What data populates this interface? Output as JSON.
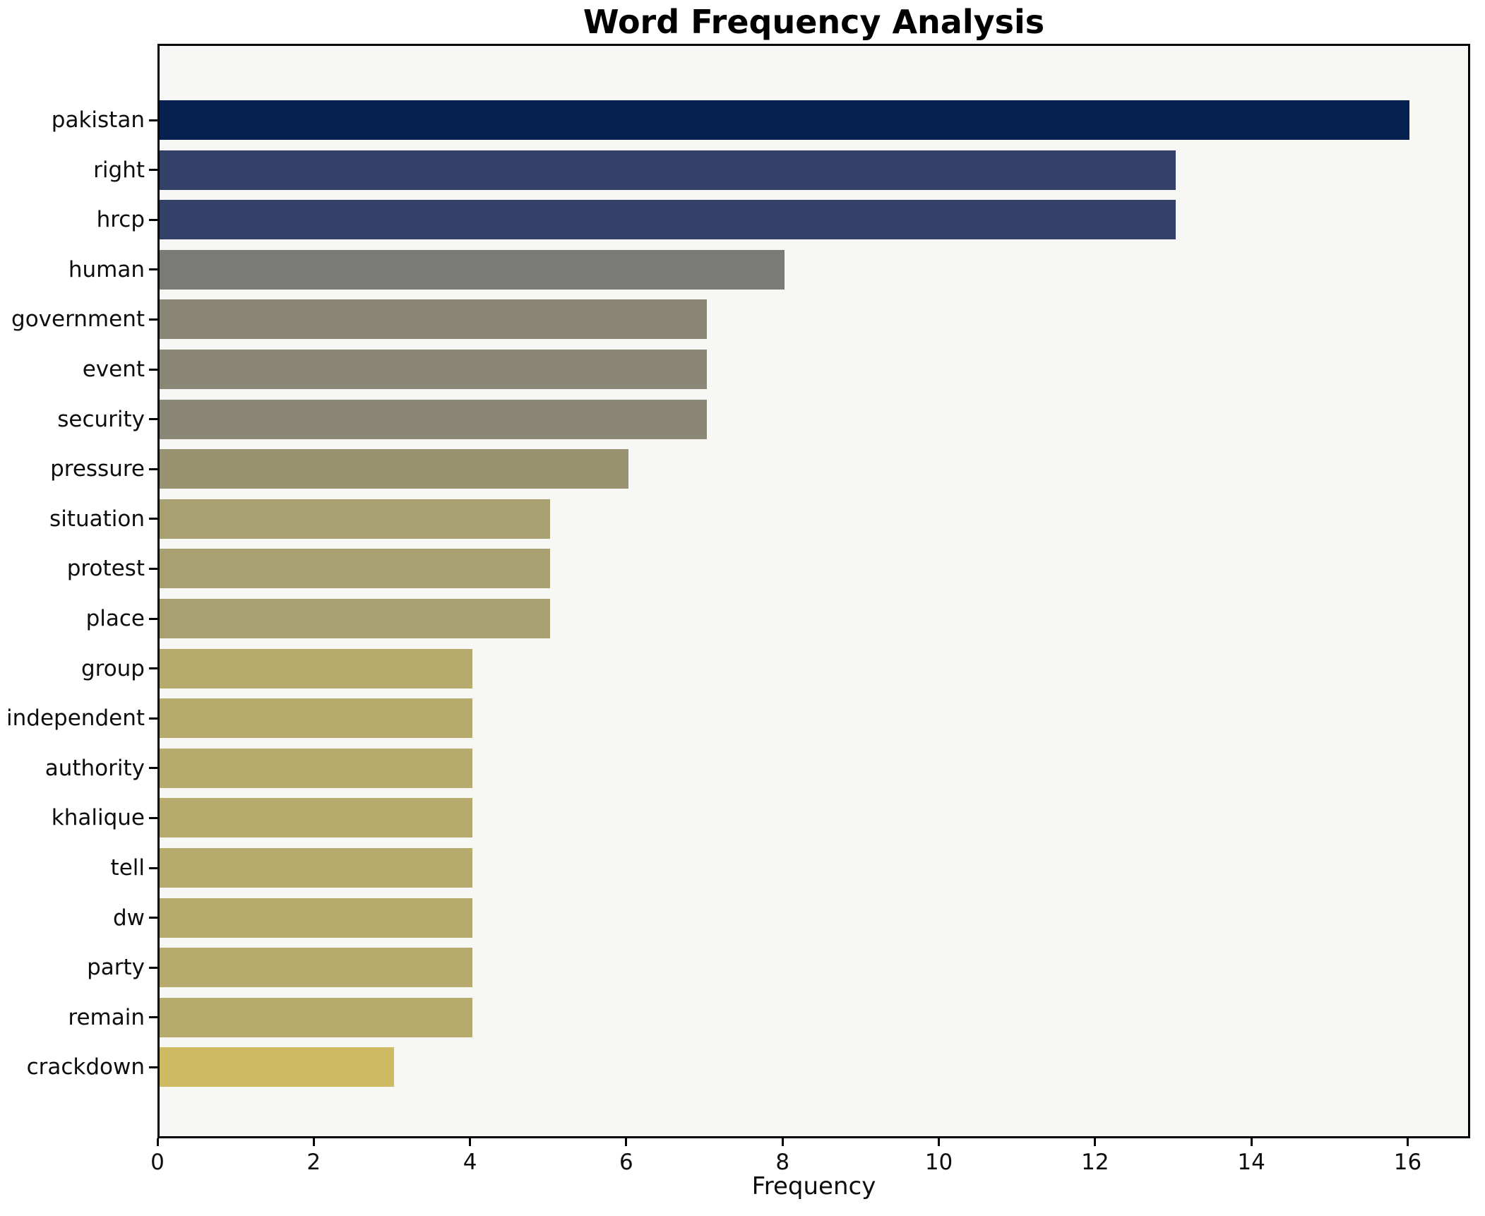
{
  "chart_data": {
    "type": "bar",
    "orientation": "horizontal",
    "title": "Word Frequency Analysis",
    "xlabel": "Frequency",
    "ylabel": "",
    "categories": [
      "pakistan",
      "right",
      "hrcp",
      "human",
      "government",
      "event",
      "security",
      "pressure",
      "situation",
      "protest",
      "place",
      "group",
      "independent",
      "authority",
      "khalique",
      "tell",
      "dw",
      "party",
      "remain",
      "crackdown"
    ],
    "values": [
      16,
      13,
      13,
      8,
      7,
      7,
      7,
      6,
      5,
      5,
      5,
      4,
      4,
      4,
      4,
      4,
      4,
      4,
      4,
      3
    ],
    "bar_colors": [
      "#06214f",
      "#334169",
      "#334169",
      "#7a7a77",
      "#8a8777",
      "#8a8777",
      "#8a8777",
      "#999271",
      "#a9a072",
      "#a9a072",
      "#a9a072",
      "#b6aa6c",
      "#b6aa6c",
      "#b6aa6c",
      "#b6aa6c",
      "#b6aa6c",
      "#b6aa6c",
      "#b6aa6c",
      "#b6aa6c",
      "#cdba62"
    ],
    "xlim": [
      0,
      16.8
    ],
    "x_ticks": [
      0,
      2,
      4,
      6,
      8,
      10,
      12,
      14,
      16
    ],
    "grid": false,
    "legend": false,
    "plot_background": "#f7f7f5",
    "figure_background": "#ffffff",
    "spine_color": "#000000",
    "text_color": "#0d0d0d"
  }
}
